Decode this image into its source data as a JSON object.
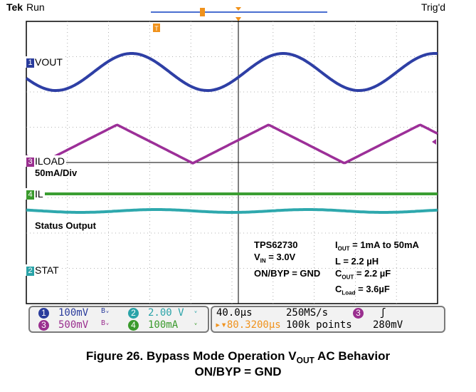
{
  "header": {
    "brand": "Tek",
    "state": "Run",
    "trigger_status": "Trig'd"
  },
  "channels": [
    {
      "num": "1",
      "name": "VOUT",
      "color": "#2a3c9c",
      "trace": "#2e3fa5"
    },
    {
      "num": "3",
      "name": "ILOAD",
      "color": "#9a2f8f",
      "trace": "#9c2f98"
    },
    {
      "num": "4",
      "name": "IL",
      "color": "#3a9a2c",
      "trace": "#3b9e32"
    },
    {
      "num": "2",
      "name": "STAT",
      "color": "#2aa3a8",
      "trace": "#2ea8ad"
    }
  ],
  "notes": {
    "iload_scale": "50mA/Div",
    "status_output": "Status Output"
  },
  "params_left": [
    "TPS62730",
    "V",
    "IN",
    " = 3.0V",
    "ON/BYP = GND"
  ],
  "params_right": {
    "iout_pre": "I",
    "iout_sub": "OUT",
    "iout_val": " = 1mA to 50mA",
    "l": "L = 2.2 µH",
    "cout_pre": "C",
    "cout_sub": "OUT",
    "cout_val": " = 2.2 µF",
    "cload_pre": "C",
    "cload_sub": "Load",
    "cload_val": " = 3.6µF"
  },
  "readout": {
    "ch1": {
      "num": "1",
      "value": "100mV",
      "bw": "Bᵥ"
    },
    "ch2": {
      "num": "2",
      "value": "2.00 V",
      "bw": "ᵥ"
    },
    "ch3": {
      "num": "3",
      "value": "500mV",
      "bw": "Bᵥ"
    },
    "ch4": {
      "num": "4",
      "value": "100mA",
      "bw": "ᵥ"
    },
    "timebase": "40.0µs",
    "sample_rate": "250MS/s",
    "trigger_pos": "▸▾80.3200µs",
    "record": "100k points",
    "trig_ch": "3",
    "trig_slope": "ʃ",
    "trig_level": "280mV"
  },
  "caption": {
    "line1_pre": "Figure 26. Bypass Mode Operation V",
    "line1_sub": "OUT",
    "line1_post": " AC Behavior",
    "line2": "ON/BYP = GND"
  },
  "colors": {
    "grid": "#8c8c8c",
    "graticule_bg": "#ffffff",
    "trigger_marker": "#f0921c",
    "record_bar": "#4a6fd0"
  }
}
